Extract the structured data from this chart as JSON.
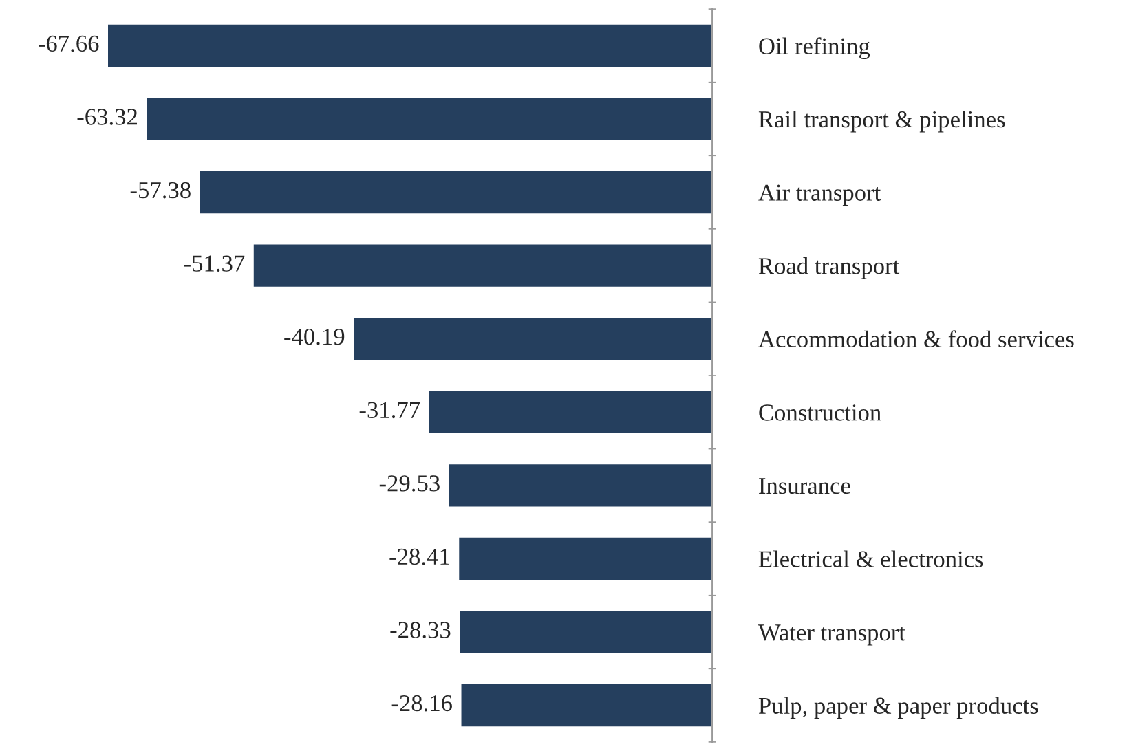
{
  "chart_data": {
    "type": "bar",
    "orientation": "horizontal",
    "data_labels": true,
    "grid": false,
    "color": "#253f5e",
    "categories": [
      "Oil refining",
      "Rail transport & pipelines",
      "Air transport",
      "Road transport",
      "Accommodation & food services",
      "Construction",
      "Insurance",
      "Electrical & electronics",
      "Water transport",
      "Pulp, paper & paper products"
    ],
    "values": [
      -67.66,
      -63.32,
      -57.38,
      -51.37,
      -40.19,
      -31.77,
      -29.53,
      -28.41,
      -28.33,
      -28.16
    ]
  }
}
